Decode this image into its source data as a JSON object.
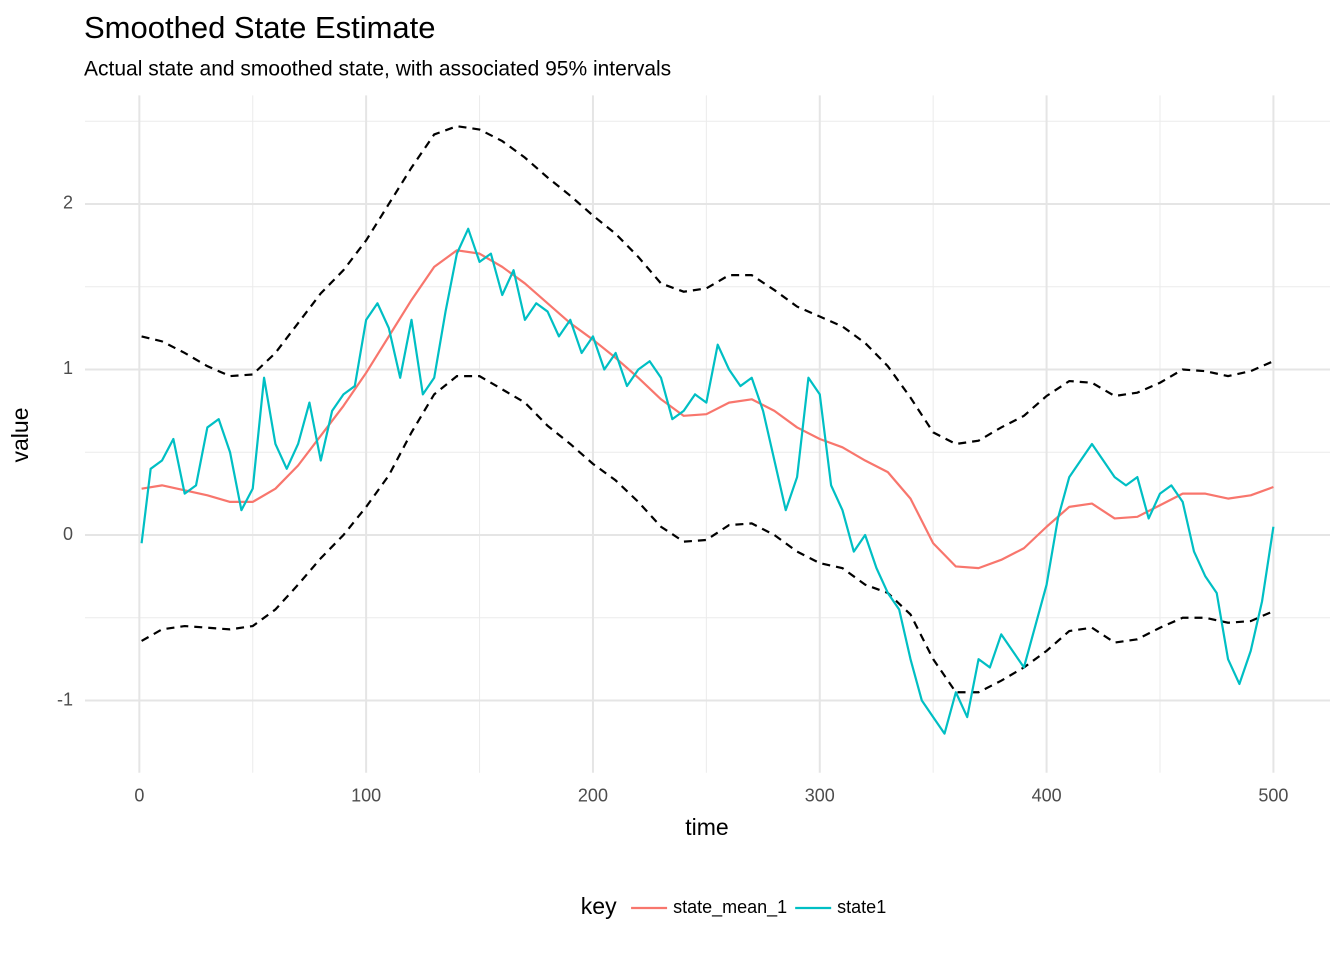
{
  "chart_data": {
    "type": "line",
    "title": "Smoothed State Estimate",
    "subtitle": "Actual state and smoothed state, with associated 95% intervals",
    "x_label": "time",
    "y_label": "value",
    "legend_title": "key",
    "legend_position": "bottom",
    "xlim": [
      -23.95,
      524.95
    ],
    "ylim": [
      -1.436,
      2.656
    ],
    "xticks": [
      0,
      100,
      200,
      300,
      400,
      500
    ],
    "yticks": [
      -1,
      0,
      1,
      2
    ],
    "x_minor_grid": [
      50,
      150,
      250,
      350,
      450
    ],
    "y_minor_grid": [
      -0.5,
      0.5,
      1.5,
      2.5
    ],
    "grid": true,
    "series": [
      {
        "name": "state_mean_1",
        "color": "#f8766d",
        "x": [
          1,
          10,
          20,
          30,
          40,
          50,
          60,
          70,
          80,
          90,
          100,
          110,
          120,
          130,
          140,
          150,
          160,
          170,
          180,
          190,
          200,
          210,
          220,
          230,
          240,
          250,
          260,
          270,
          280,
          290,
          300,
          310,
          320,
          330,
          340,
          350,
          360,
          370,
          380,
          390,
          400,
          410,
          420,
          430,
          440,
          450,
          460,
          470,
          480,
          490,
          500
        ],
        "values": [
          0.28,
          0.3,
          0.27,
          0.24,
          0.2,
          0.2,
          0.28,
          0.42,
          0.6,
          0.78,
          0.98,
          1.2,
          1.42,
          1.62,
          1.72,
          1.7,
          1.62,
          1.52,
          1.4,
          1.28,
          1.18,
          1.07,
          0.95,
          0.82,
          0.72,
          0.73,
          0.8,
          0.82,
          0.75,
          0.65,
          0.58,
          0.53,
          0.45,
          0.38,
          0.22,
          -0.05,
          -0.19,
          -0.2,
          -0.15,
          -0.08,
          0.05,
          0.17,
          0.19,
          0.1,
          0.11,
          0.18,
          0.25,
          0.25,
          0.22,
          0.24,
          0.29
        ]
      },
      {
        "name": "state1",
        "color": "#00bfc4",
        "x": [
          1,
          5,
          10,
          15,
          20,
          25,
          30,
          35,
          40,
          45,
          50,
          55,
          60,
          65,
          70,
          75,
          80,
          85,
          90,
          95,
          100,
          105,
          110,
          115,
          120,
          125,
          130,
          135,
          140,
          145,
          150,
          155,
          160,
          165,
          170,
          175,
          180,
          185,
          190,
          195,
          200,
          205,
          210,
          215,
          220,
          225,
          230,
          235,
          240,
          245,
          250,
          255,
          260,
          265,
          270,
          275,
          280,
          285,
          290,
          295,
          300,
          305,
          310,
          315,
          320,
          325,
          330,
          335,
          340,
          345,
          350,
          355,
          360,
          365,
          370,
          375,
          380,
          385,
          390,
          395,
          400,
          405,
          410,
          415,
          420,
          425,
          430,
          435,
          440,
          445,
          450,
          455,
          460,
          465,
          470,
          475,
          480,
          485,
          490,
          495,
          500
        ],
        "values": [
          -0.05,
          0.4,
          0.45,
          0.58,
          0.25,
          0.3,
          0.65,
          0.7,
          0.5,
          0.15,
          0.28,
          0.95,
          0.55,
          0.4,
          0.55,
          0.8,
          0.45,
          0.75,
          0.85,
          0.9,
          1.3,
          1.4,
          1.25,
          0.95,
          1.3,
          0.85,
          0.95,
          1.35,
          1.7,
          1.85,
          1.65,
          1.7,
          1.45,
          1.6,
          1.3,
          1.4,
          1.35,
          1.2,
          1.3,
          1.1,
          1.2,
          1.0,
          1.1,
          0.9,
          1.0,
          1.05,
          0.95,
          0.7,
          0.75,
          0.85,
          0.8,
          1.15,
          1.0,
          0.9,
          0.95,
          0.75,
          0.45,
          0.15,
          0.35,
          0.95,
          0.85,
          0.3,
          0.15,
          -0.1,
          0.0,
          -0.2,
          -0.35,
          -0.45,
          -0.75,
          -1.0,
          -1.1,
          -1.2,
          -0.95,
          -1.1,
          -0.75,
          -0.8,
          -0.6,
          -0.7,
          -0.8,
          -0.55,
          -0.3,
          0.1,
          0.35,
          0.45,
          0.55,
          0.45,
          0.35,
          0.3,
          0.35,
          0.1,
          0.25,
          0.3,
          0.2,
          -0.1,
          -0.25,
          -0.35,
          -0.75,
          -0.9,
          -0.7,
          -0.4,
          0.05
        ]
      }
    ],
    "interval_lines": [
      {
        "color": "#000000",
        "dashed": true,
        "x": [
          1,
          10,
          20,
          30,
          40,
          50,
          60,
          70,
          80,
          90,
          100,
          110,
          120,
          130,
          140,
          150,
          160,
          170,
          180,
          190,
          200,
          210,
          220,
          230,
          240,
          250,
          260,
          270,
          280,
          290,
          300,
          310,
          320,
          330,
          340,
          350,
          360,
          370,
          380,
          390,
          400,
          410,
          420,
          430,
          440,
          450,
          460,
          470,
          480,
          490,
          500
        ],
        "values": [
          1.2,
          1.17,
          1.1,
          1.02,
          0.96,
          0.97,
          1.1,
          1.28,
          1.46,
          1.6,
          1.78,
          2.0,
          2.22,
          2.42,
          2.47,
          2.45,
          2.38,
          2.28,
          2.16,
          2.05,
          1.93,
          1.82,
          1.68,
          1.52,
          1.47,
          1.49,
          1.57,
          1.57,
          1.48,
          1.38,
          1.32,
          1.26,
          1.16,
          1.02,
          0.83,
          0.62,
          0.55,
          0.57,
          0.65,
          0.72,
          0.84,
          0.93,
          0.92,
          0.84,
          0.86,
          0.92,
          1.0,
          0.99,
          0.96,
          0.99,
          1.05
        ]
      },
      {
        "color": "#000000",
        "dashed": true,
        "x": [
          1,
          10,
          20,
          30,
          40,
          50,
          60,
          70,
          80,
          90,
          100,
          110,
          120,
          130,
          140,
          150,
          160,
          170,
          180,
          190,
          200,
          210,
          220,
          230,
          240,
          250,
          260,
          270,
          280,
          290,
          300,
          310,
          320,
          330,
          340,
          350,
          360,
          370,
          380,
          390,
          400,
          410,
          420,
          430,
          440,
          450,
          460,
          470,
          480,
          490,
          500
        ],
        "values": [
          -0.64,
          -0.57,
          -0.55,
          -0.56,
          -0.57,
          -0.55,
          -0.45,
          -0.3,
          -0.14,
          0.0,
          0.17,
          0.36,
          0.62,
          0.85,
          0.96,
          0.96,
          0.88,
          0.8,
          0.66,
          0.55,
          0.43,
          0.33,
          0.2,
          0.05,
          -0.04,
          -0.03,
          0.06,
          0.07,
          0.0,
          -0.1,
          -0.17,
          -0.2,
          -0.3,
          -0.35,
          -0.48,
          -0.75,
          -0.95,
          -0.95,
          -0.88,
          -0.8,
          -0.7,
          -0.58,
          -0.56,
          -0.65,
          -0.63,
          -0.56,
          -0.5,
          -0.5,
          -0.53,
          -0.52,
          -0.46
        ]
      }
    ]
  }
}
